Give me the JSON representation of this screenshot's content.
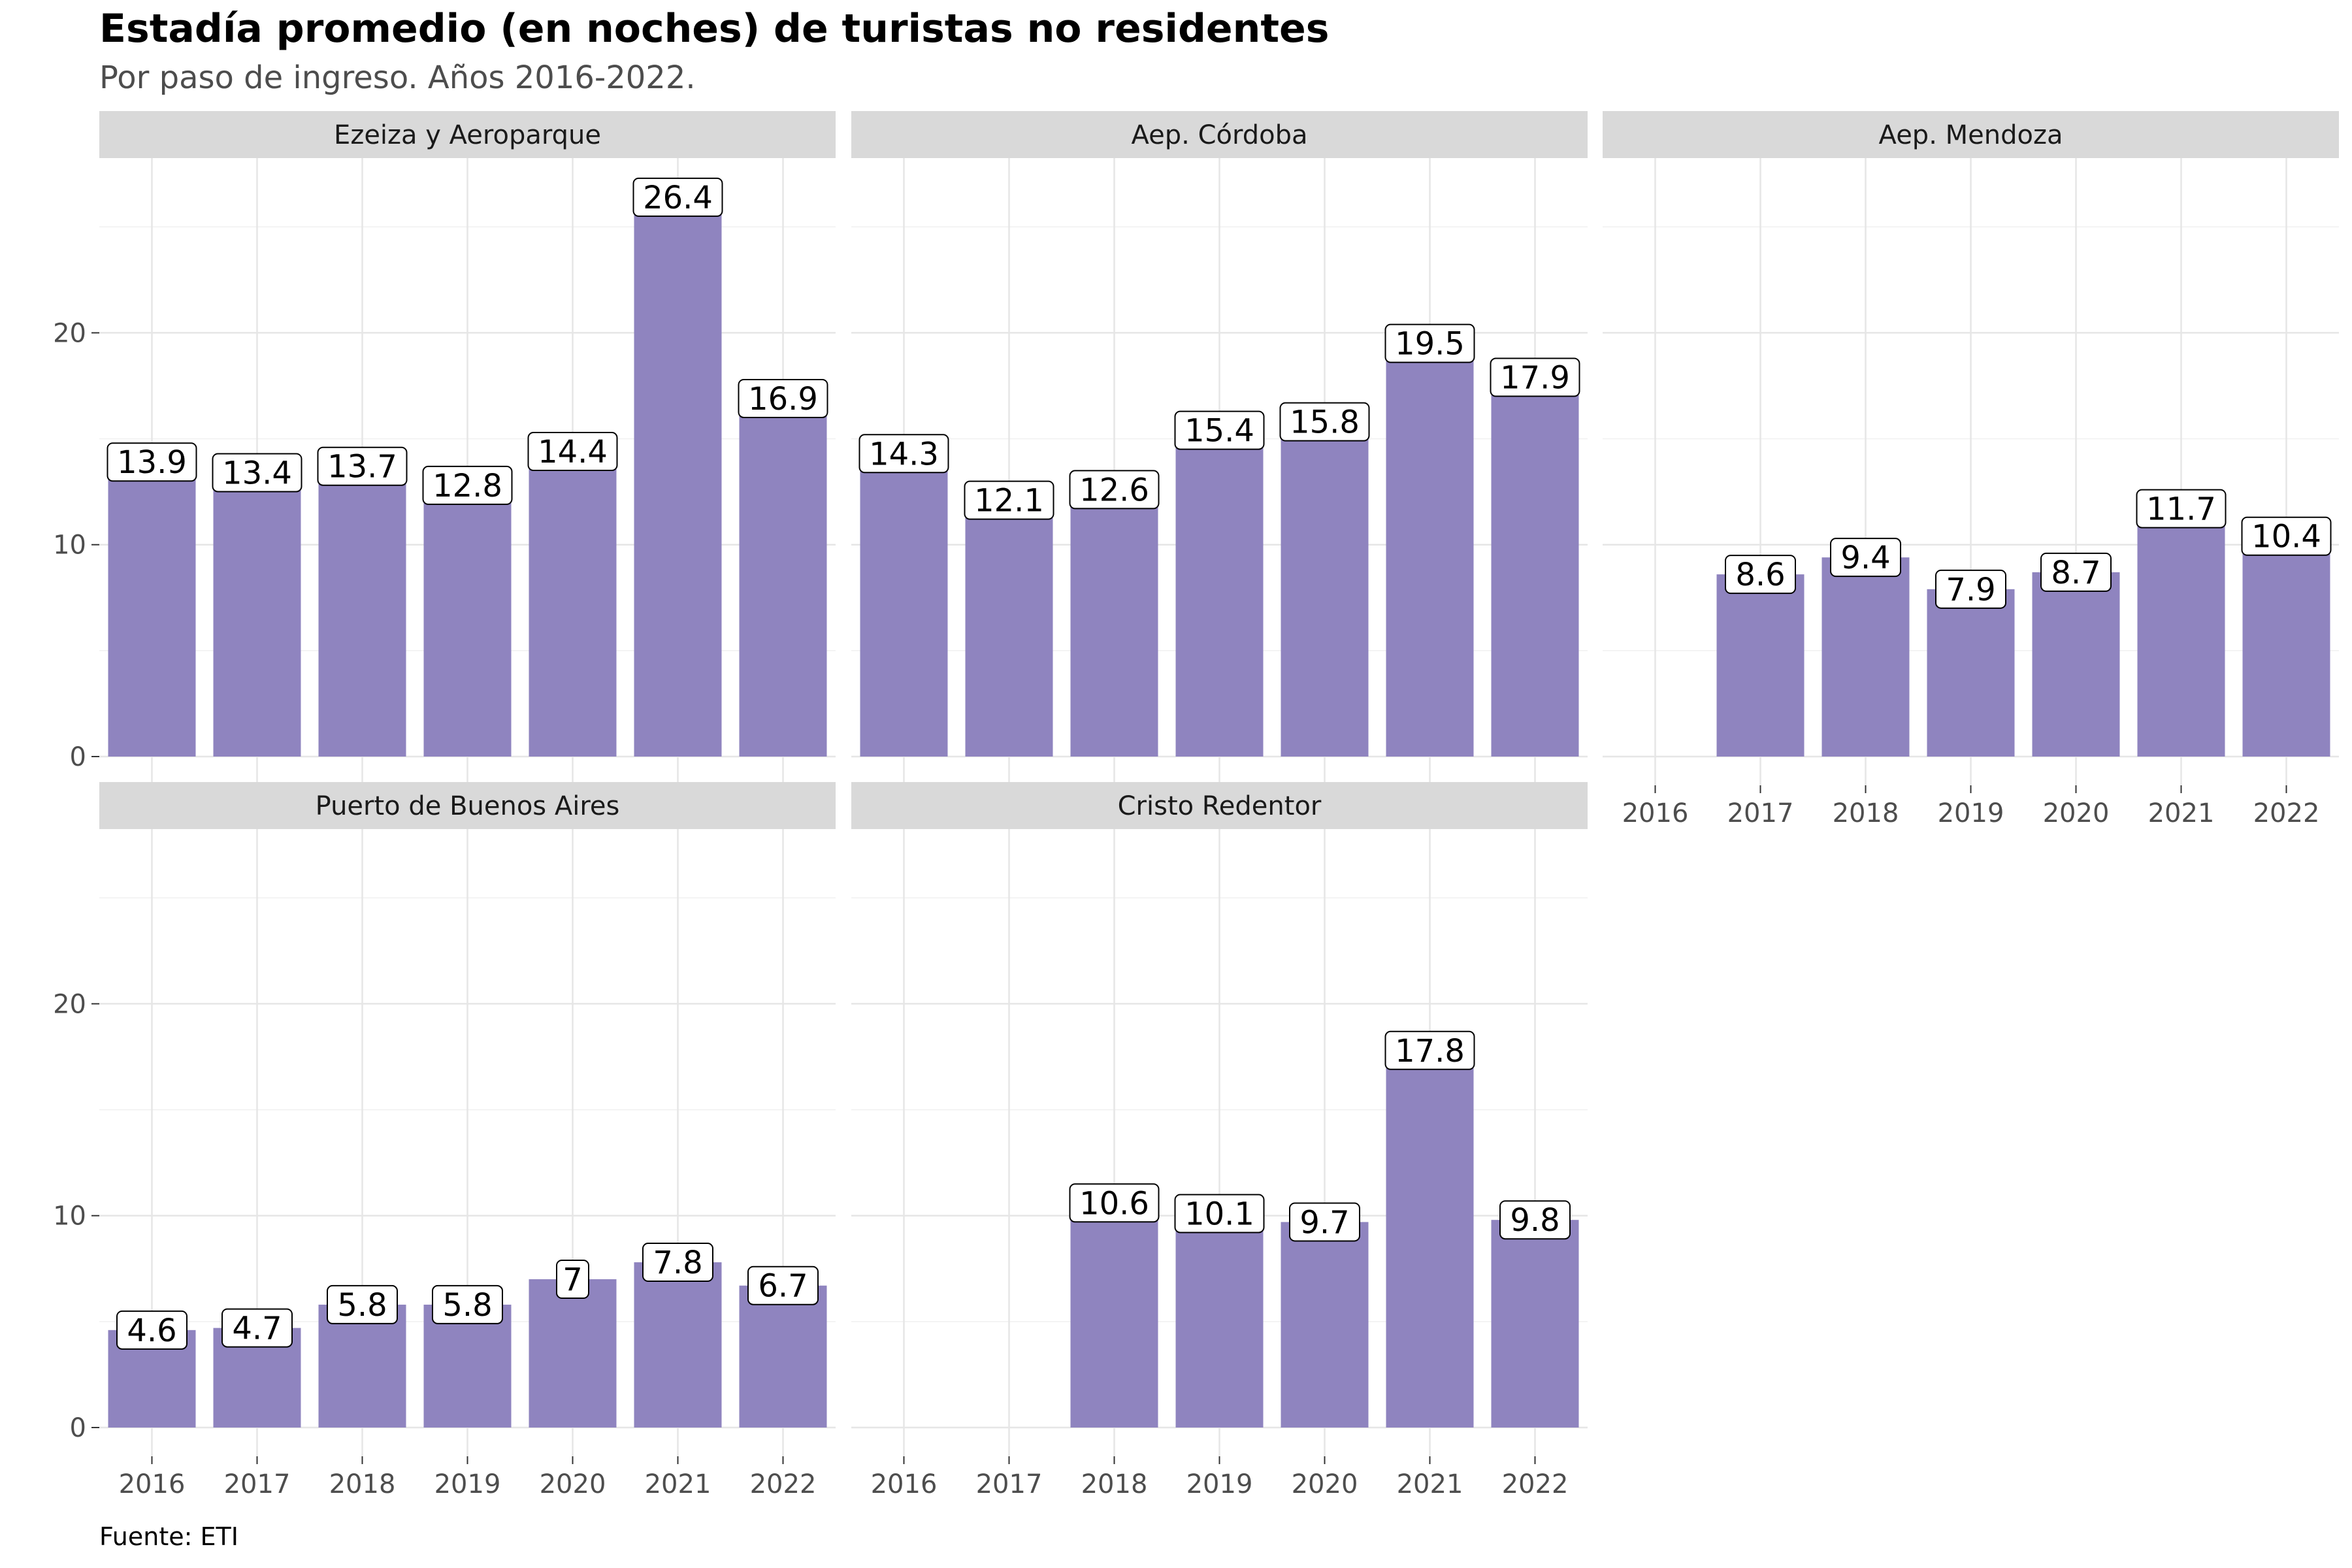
{
  "chart_data": {
    "type": "bar",
    "title": "Estadía promedio (en noches) de turistas no residentes",
    "subtitle": "Por paso de ingreso. Años 2016-2022.",
    "caption": "Fuente: ETI",
    "categories": [
      "2016",
      "2017",
      "2018",
      "2019",
      "2020",
      "2021",
      "2022"
    ],
    "ylim": [
      0,
      28
    ],
    "yticks": [
      "0",
      "10",
      "20"
    ],
    "ytick_values": [
      0,
      10,
      20
    ],
    "grid": true,
    "bar_color": "#8f84bf",
    "panels": [
      {
        "name": "Ezeiza y Aeroparque",
        "values": [
          13.9,
          13.4,
          13.7,
          12.8,
          14.4,
          26.4,
          16.9
        ],
        "labels": [
          "13.9",
          "13.4",
          "13.7",
          "12.8",
          "14.4",
          "26.4",
          "16.9"
        ]
      },
      {
        "name": "Aep. Córdoba",
        "values": [
          14.3,
          12.1,
          12.6,
          15.4,
          15.8,
          19.5,
          17.9
        ],
        "labels": [
          "14.3",
          "12.1",
          "12.6",
          "15.4",
          "15.8",
          "19.5",
          "17.9"
        ]
      },
      {
        "name": "Aep. Mendoza",
        "values": [
          null,
          8.6,
          9.4,
          7.9,
          8.7,
          11.7,
          10.4
        ],
        "labels": [
          "",
          "8.6",
          "9.4",
          "7.9",
          "8.7",
          "11.7",
          "10.4"
        ]
      },
      {
        "name": "Puerto de Buenos Aires",
        "values": [
          4.6,
          4.7,
          5.8,
          5.8,
          7,
          7.8,
          6.7
        ],
        "labels": [
          "4.6",
          "4.7",
          "5.8",
          "5.8",
          "7",
          "7.8",
          "6.7"
        ]
      },
      {
        "name": "Cristo Redentor",
        "values": [
          null,
          null,
          10.6,
          10.1,
          9.7,
          17.8,
          9.8
        ],
        "labels": [
          "",
          "",
          "10.6",
          "10.1",
          "9.7",
          "17.8",
          "9.8"
        ]
      }
    ]
  }
}
